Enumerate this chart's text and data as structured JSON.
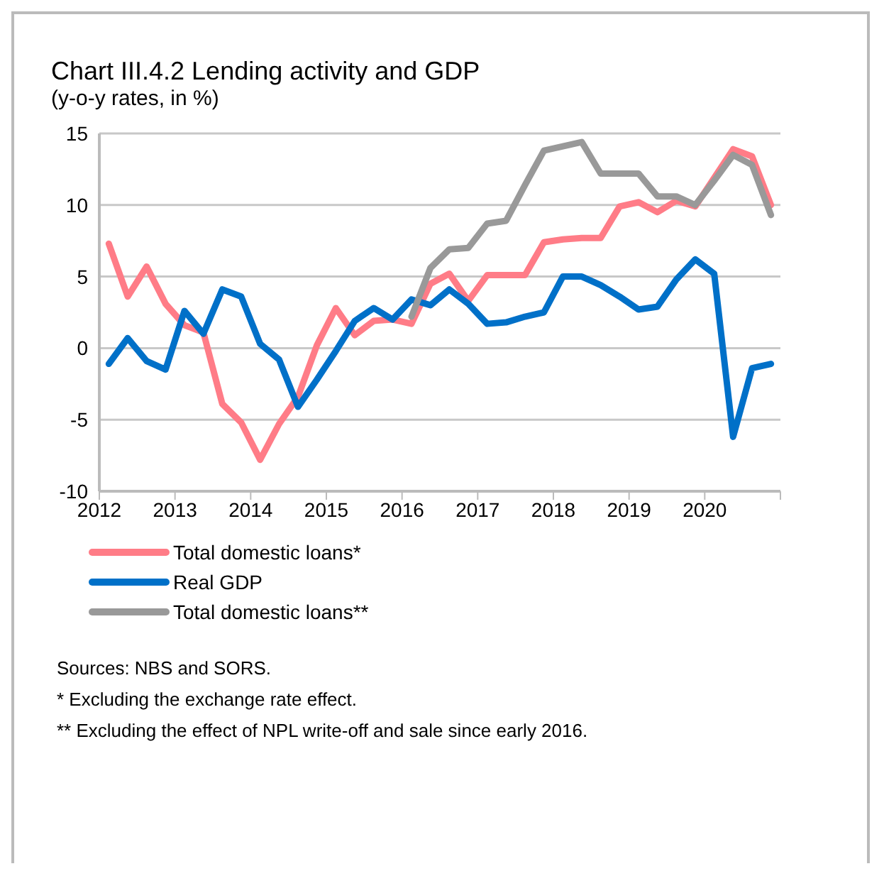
{
  "chart_data": {
    "type": "line",
    "title": "Chart III.4.2 Lending activity and GDP",
    "subtitle": "(y-o-y rates, in %)",
    "x": [
      2012.125,
      2012.375,
      2012.625,
      2012.875,
      2013.125,
      2013.375,
      2013.625,
      2013.875,
      2014.125,
      2014.375,
      2014.625,
      2014.875,
      2015.125,
      2015.375,
      2015.625,
      2015.875,
      2016.125,
      2016.375,
      2016.625,
      2016.875,
      2017.125,
      2017.375,
      2017.625,
      2017.875,
      2018.125,
      2018.375,
      2018.625,
      2018.875,
      2019.125,
      2019.375,
      2019.625,
      2019.875,
      2020.125,
      2020.375,
      2020.625,
      2020.875
    ],
    "series": [
      {
        "name": "Total domestic loans*",
        "color": "#ff7c87",
        "values": [
          7.3,
          3.6,
          5.7,
          3.1,
          1.6,
          1.1,
          -3.9,
          -5.2,
          -7.8,
          -5.3,
          -3.4,
          0.2,
          2.8,
          0.9,
          1.9,
          2.0,
          1.7,
          4.5,
          5.2,
          3.3,
          5.1,
          5.1,
          5.1,
          7.4,
          7.6,
          7.7,
          7.7,
          9.9,
          10.2,
          9.5,
          10.3,
          9.9,
          11.9,
          13.9,
          13.4,
          10.0
        ]
      },
      {
        "name": "Real GDP",
        "color": "#0070c8",
        "values": [
          -1.1,
          0.7,
          -0.9,
          -1.5,
          2.6,
          1.0,
          4.1,
          3.6,
          0.3,
          -0.8,
          -4.1,
          -2.2,
          -0.2,
          1.9,
          2.8,
          2.0,
          3.4,
          3.0,
          4.1,
          3.1,
          1.7,
          1.8,
          2.2,
          2.5,
          5.0,
          5.0,
          4.4,
          3.6,
          2.7,
          2.9,
          4.8,
          6.2,
          5.2,
          -6.2,
          -1.4,
          -1.1
        ]
      },
      {
        "name": "Total domestic loans**",
        "color": "#999999",
        "values": [
          null,
          null,
          null,
          null,
          null,
          null,
          null,
          null,
          null,
          null,
          null,
          null,
          null,
          null,
          null,
          null,
          2.2,
          5.6,
          6.9,
          7.0,
          8.7,
          8.9,
          11.4,
          13.8,
          14.1,
          14.4,
          12.2,
          12.2,
          12.2,
          10.6,
          10.6,
          10.0,
          11.7,
          13.5,
          12.8,
          9.3
        ]
      }
    ],
    "xlim": [
      2012,
      2021
    ],
    "xticks": [
      2012,
      2013,
      2014,
      2015,
      2016,
      2017,
      2018,
      2019,
      2020,
      {
        "value": 2021,
        "label": null
      }
    ],
    "ylim": [
      -10,
      15
    ],
    "yticks": [
      -10,
      -5,
      0,
      5,
      10,
      15
    ],
    "grid": "y",
    "legend": "bottom",
    "marker": "none",
    "line_style": "solid",
    "annotations": [
      "Sources: NBS and SORS.",
      "* Excluding the exchange rate effect.",
      "** Excluding the effect of NPL write-off and sale since early 2016."
    ]
  }
}
